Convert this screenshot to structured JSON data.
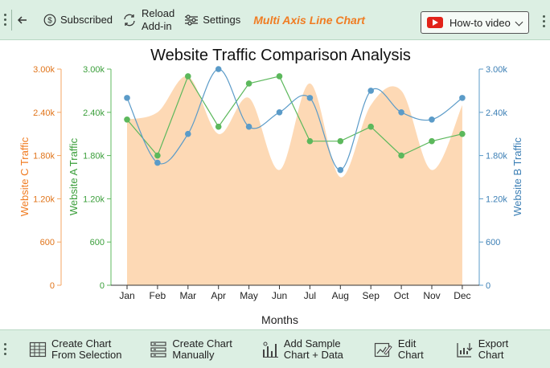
{
  "toolbar": {
    "subscribed_label": "Subscribed",
    "reload_line1": "Reload",
    "reload_line2": "Add-in",
    "settings_label": "Settings",
    "brand_title": "Multi Axis Line Chart",
    "howto_label": "How-to video"
  },
  "bottom_toolbar": {
    "create_selection_1": "Create Chart",
    "create_selection_2": "From Selection",
    "create_manual_1": "Create Chart",
    "create_manual_2": "Manually",
    "add_sample_1": "Add Sample",
    "add_sample_2": "Chart + Data",
    "edit_1": "Edit",
    "edit_2": "Chart",
    "export_1": "Export",
    "export_2": "Chart"
  },
  "colors": {
    "toolbar_bg": "#dcefe3",
    "brand": "#f07c22",
    "series_a": "#5cb85c",
    "series_b": "#5b9bc8",
    "series_c": "#f5a561",
    "area_c": "#fdd9b5"
  },
  "chart_data": {
    "type": "line",
    "title": "Website Traffic Comparison Analysis",
    "xlabel": "Months",
    "categories": [
      "Jan",
      "Feb",
      "Mar",
      "Apr",
      "May",
      "Jun",
      "Jul",
      "Aug",
      "Sep",
      "Oct",
      "Nov",
      "Dec"
    ],
    "series": [
      {
        "name": "Website A Traffic",
        "axis": "left-inner",
        "values": [
          2300,
          1800,
          2900,
          2200,
          2800,
          2900,
          2000,
          2000,
          2200,
          1800,
          2000,
          2100
        ]
      },
      {
        "name": "Website B Traffic",
        "axis": "right",
        "values": [
          2600,
          1700,
          2100,
          3000,
          2200,
          2400,
          2600,
          1600,
          2700,
          2400,
          2300,
          2600
        ]
      },
      {
        "name": "Website C Traffic",
        "axis": "left-outer",
        "style": "area",
        "values": [
          2300,
          2400,
          2900,
          2100,
          2600,
          1600,
          2800,
          1500,
          2500,
          2700,
          1600,
          2500
        ]
      }
    ],
    "axes": {
      "left_outer": {
        "label": "Website C Traffic",
        "ylim": [
          0,
          3000
        ],
        "ticks": [
          "0",
          "600",
          "1.20k",
          "1.80k",
          "2.40k",
          "3.00k"
        ]
      },
      "left_inner": {
        "label": "Website A Traffic",
        "ylim": [
          0,
          3000
        ],
        "ticks": [
          "0",
          "600",
          "1.20k",
          "1.80k",
          "2.40k",
          "3.00k"
        ]
      },
      "right": {
        "label": "Website B Traffic",
        "ylim": [
          0,
          3000
        ],
        "ticks": [
          "0",
          "600",
          "1.20k",
          "1.80k",
          "2.40k",
          "3.00k"
        ]
      }
    },
    "tick_values": [
      0,
      600,
      1200,
      1800,
      2400,
      3000
    ],
    "grid": false,
    "legend": "none"
  }
}
